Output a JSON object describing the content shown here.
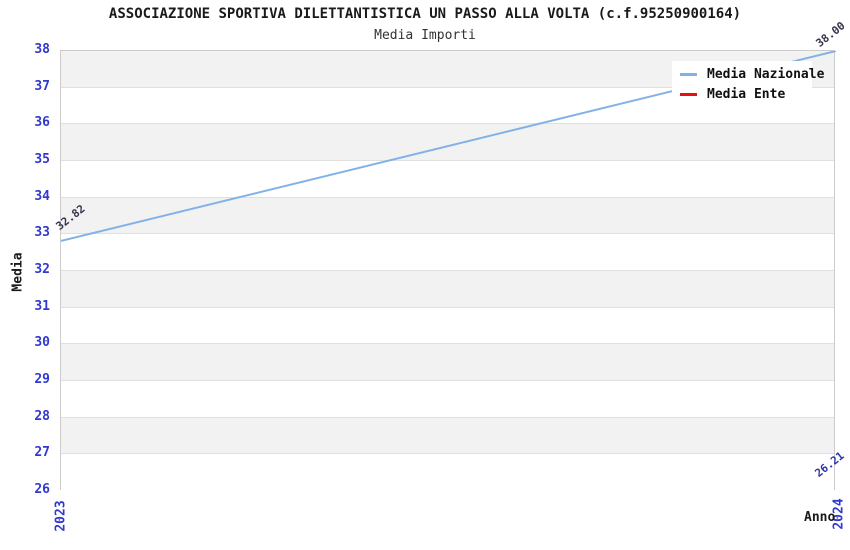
{
  "header": {
    "title": "ASSOCIAZIONE SPORTIVA DILETTANTISTICA UN PASSO ALLA VOLTA (c.f.95250900164)",
    "subtitle": "Media Importi"
  },
  "axes": {
    "y_label": "Media",
    "x_label": "Anno"
  },
  "legend": {
    "items": [
      {
        "label": "Media Nazionale",
        "color": "#82b1e8"
      },
      {
        "label": "Media Ente",
        "color": "#e60f0f"
      }
    ]
  },
  "point_labels": {
    "nazionale_2023": "32.82",
    "nazionale_2024": "38.00",
    "ente_2024": "26.21"
  },
  "chart_data": {
    "type": "line",
    "title": "Media Importi",
    "xlabel": "Anno",
    "ylabel": "Media",
    "x": [
      "2023",
      "2024"
    ],
    "series": [
      {
        "name": "Media Nazionale",
        "color": "#82b1e8",
        "values": [
          32.82,
          38.0
        ]
      },
      {
        "name": "Media Ente",
        "color": "#e60f0f",
        "values": [
          null,
          26.21
        ]
      }
    ],
    "ylim": [
      26,
      38
    ],
    "y_ticks": [
      26,
      27,
      28,
      29,
      30,
      31,
      32,
      33,
      34,
      35,
      36,
      37,
      38
    ],
    "x_ticks": [
      "2023",
      "2024"
    ],
    "grid": "horizontal-bands-alternating",
    "band_color": "#f2f2f2",
    "grid_color": "#e0e0e0",
    "tick_color": "#3039cf",
    "legend_position": "top-right"
  }
}
